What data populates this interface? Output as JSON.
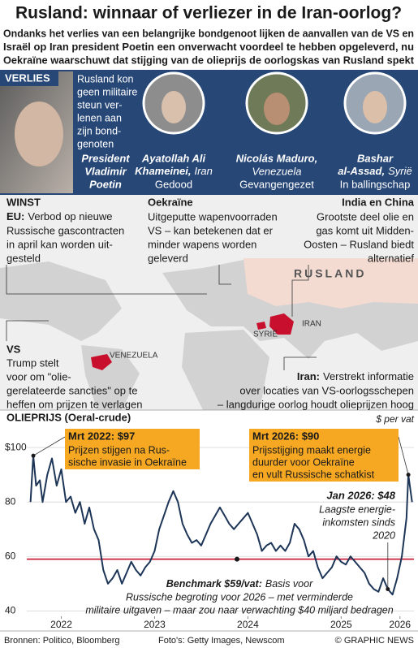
{
  "header": {
    "title": "Rusland: winnaar of verliezer in de Iran-oorlog?",
    "subtitle": [
      "Ondanks het verlies van een belangrijke bondgenoot lijken de aanvallen van de VS en",
      "Israël op Iran president Poetin een onverwacht voordeel te hebben opgeleverd, nu",
      "Oekraïne waarschuwt dat stijging van de olieprijs de oorlogskas van Rusland spekt"
    ]
  },
  "loss": {
    "label": "VERLIES",
    "text": [
      "Rusland kon",
      "geen militaire",
      "steun ver-",
      "lenen aan",
      "zijn bond-",
      "genoten"
    ],
    "people": [
      {
        "name": [
          "President",
          "Vladimir",
          "Poetin"
        ]
      },
      {
        "name": [
          "Ayatollah Ali",
          "Khameinei,"
        ],
        "country": "Iran",
        "status": "Gedood"
      },
      {
        "name": [
          "Nicolás Maduro,"
        ],
        "country": "Venezuela",
        "status": "Gevangengezet"
      },
      {
        "name": [
          "Bashar",
          "al-Assad,"
        ],
        "country": "Syrië",
        "status": "In ballingschap"
      }
    ]
  },
  "gain": {
    "label": "WINST",
    "eu": {
      "title": "EU:",
      "text": [
        "Verbod op nieuwe",
        "Russische gascontracten",
        "in april kan worden uit-",
        "gesteld"
      ]
    },
    "ukraine": {
      "title": "Oekraïne",
      "text": [
        "Uitgeputte wapenvoorraden",
        "VS – kan betekenen dat er",
        "minder wapens worden",
        "geleverd"
      ]
    },
    "asia": {
      "title": "India en China",
      "text": [
        "Grootste deel olie en",
        "gas komt uit Midden-",
        "Oosten – Rusland biedt",
        "alternatief"
      ]
    },
    "us": {
      "title": "VS",
      "text": [
        "Trump stelt",
        "voor om \"olie-",
        "gerelateerde sancties\" op te",
        "heffen om prijzen te verlagen"
      ]
    },
    "iran": {
      "title": "Iran:",
      "text": [
        "Verstrekt informatie",
        "over locaties van VS-oorlogsschepen",
        "– langdurige oorlog houdt olieprijzen hoog"
      ]
    }
  },
  "map_labels": {
    "russia": "RUSLAND",
    "iran": "IRAN",
    "syria": "SYRIË",
    "venezuela": "VENEZUELA"
  },
  "chart_data": {
    "type": "line",
    "title": "OLIEPRIJS (Oeral-crude)",
    "ylabel": "$ per vat",
    "xlim": [
      2022.13,
      2026.28
    ],
    "ylim": [
      38,
      106
    ],
    "yticks": [
      {
        "value": 100,
        "label": "$100"
      },
      80,
      60,
      40
    ],
    "xticks": [
      {
        "value": 2022.5,
        "label": "2022"
      },
      {
        "value": 2023.5,
        "label": "2023"
      },
      {
        "value": 2024.5,
        "label": "2024"
      },
      {
        "value": 2025.5,
        "label": "2025"
      },
      {
        "value": 2026.13,
        "label": "2026"
      }
    ],
    "grid": true,
    "series": [
      {
        "color": "#1d3557",
        "x": [
          2022.17,
          2022.2,
          2022.23,
          2022.27,
          2022.3,
          2022.35,
          2022.4,
          2022.45,
          2022.5,
          2022.55,
          2022.6,
          2022.65,
          2022.7,
          2022.75,
          2022.8,
          2022.85,
          2022.9,
          2022.95,
          2023.0,
          2023.05,
          2023.1,
          2023.15,
          2023.2,
          2023.25,
          2023.3,
          2023.35,
          2023.4,
          2023.45,
          2023.5,
          2023.55,
          2023.6,
          2023.65,
          2023.7,
          2023.75,
          2023.8,
          2023.85,
          2023.9,
          2023.95,
          2024.0,
          2024.05,
          2024.1,
          2024.15,
          2024.2,
          2024.25,
          2024.3,
          2024.35,
          2024.4,
          2024.45,
          2024.5,
          2024.55,
          2024.6,
          2024.65,
          2024.7,
          2024.75,
          2024.8,
          2024.85,
          2024.9,
          2024.95,
          2025.0,
          2025.05,
          2025.1,
          2025.15,
          2025.2,
          2025.25,
          2025.3,
          2025.35,
          2025.4,
          2025.45,
          2025.5,
          2025.55,
          2025.6,
          2025.65,
          2025.7,
          2025.75,
          2025.8,
          2025.85,
          2025.9,
          2025.95,
          2026.0,
          2026.05,
          2026.1,
          2026.15,
          2026.2,
          2026.22,
          2026.26
        ],
        "values": [
          80,
          97,
          86,
          88,
          80,
          90,
          96,
          86,
          92,
          80,
          82,
          76,
          80,
          72,
          78,
          70,
          66,
          55,
          50,
          52,
          55,
          50,
          54,
          58,
          55,
          53,
          56,
          58,
          62,
          70,
          75,
          80,
          84,
          80,
          72,
          68,
          65,
          66,
          64,
          68,
          72,
          75,
          78,
          75,
          72,
          70,
          72,
          74,
          76,
          72,
          68,
          62,
          64,
          65,
          62,
          64,
          62,
          65,
          72,
          70,
          66,
          60,
          62,
          56,
          52,
          54,
          56,
          60,
          58,
          57,
          60,
          58,
          56,
          54,
          50,
          48,
          47,
          52,
          48,
          46,
          52,
          60,
          74,
          90,
          80
        ]
      }
    ],
    "annotations": [
      {
        "x": 2022.2,
        "value": 97,
        "label": "Mrt 2022: $97",
        "text": [
          "Prijzen stijgen na Rus-",
          "sische invasie in Oekraïne"
        ]
      },
      {
        "x": 2026.22,
        "value": 90,
        "label": "Mrt 2026: $90",
        "text": [
          "Prijsstijging maakt energie",
          "duurder voor Oekraïne",
          "en vult Russische schatkist"
        ]
      },
      {
        "x": 2026.0,
        "value": 48,
        "label": "Jan 2026: $48",
        "text": [
          "Laagste energie-",
          "inkomsten sinds",
          "2020"
        ]
      }
    ],
    "benchmark": {
      "value": 59,
      "color": "#c8102e",
      "label": "Benchmark $59/vat:",
      "text": [
        "Basis voor",
        "Russische begroting voor 2026 – met verminderde",
        "militaire uitgaven – maar zou naar verwachting $40 miljard bedragen"
      ]
    }
  },
  "footer": {
    "sources": "Bronnen: Politico, Bloomberg",
    "photos": "Foto's: Getty Images, Newscom",
    "credit": "© GRAPHIC NEWS"
  }
}
